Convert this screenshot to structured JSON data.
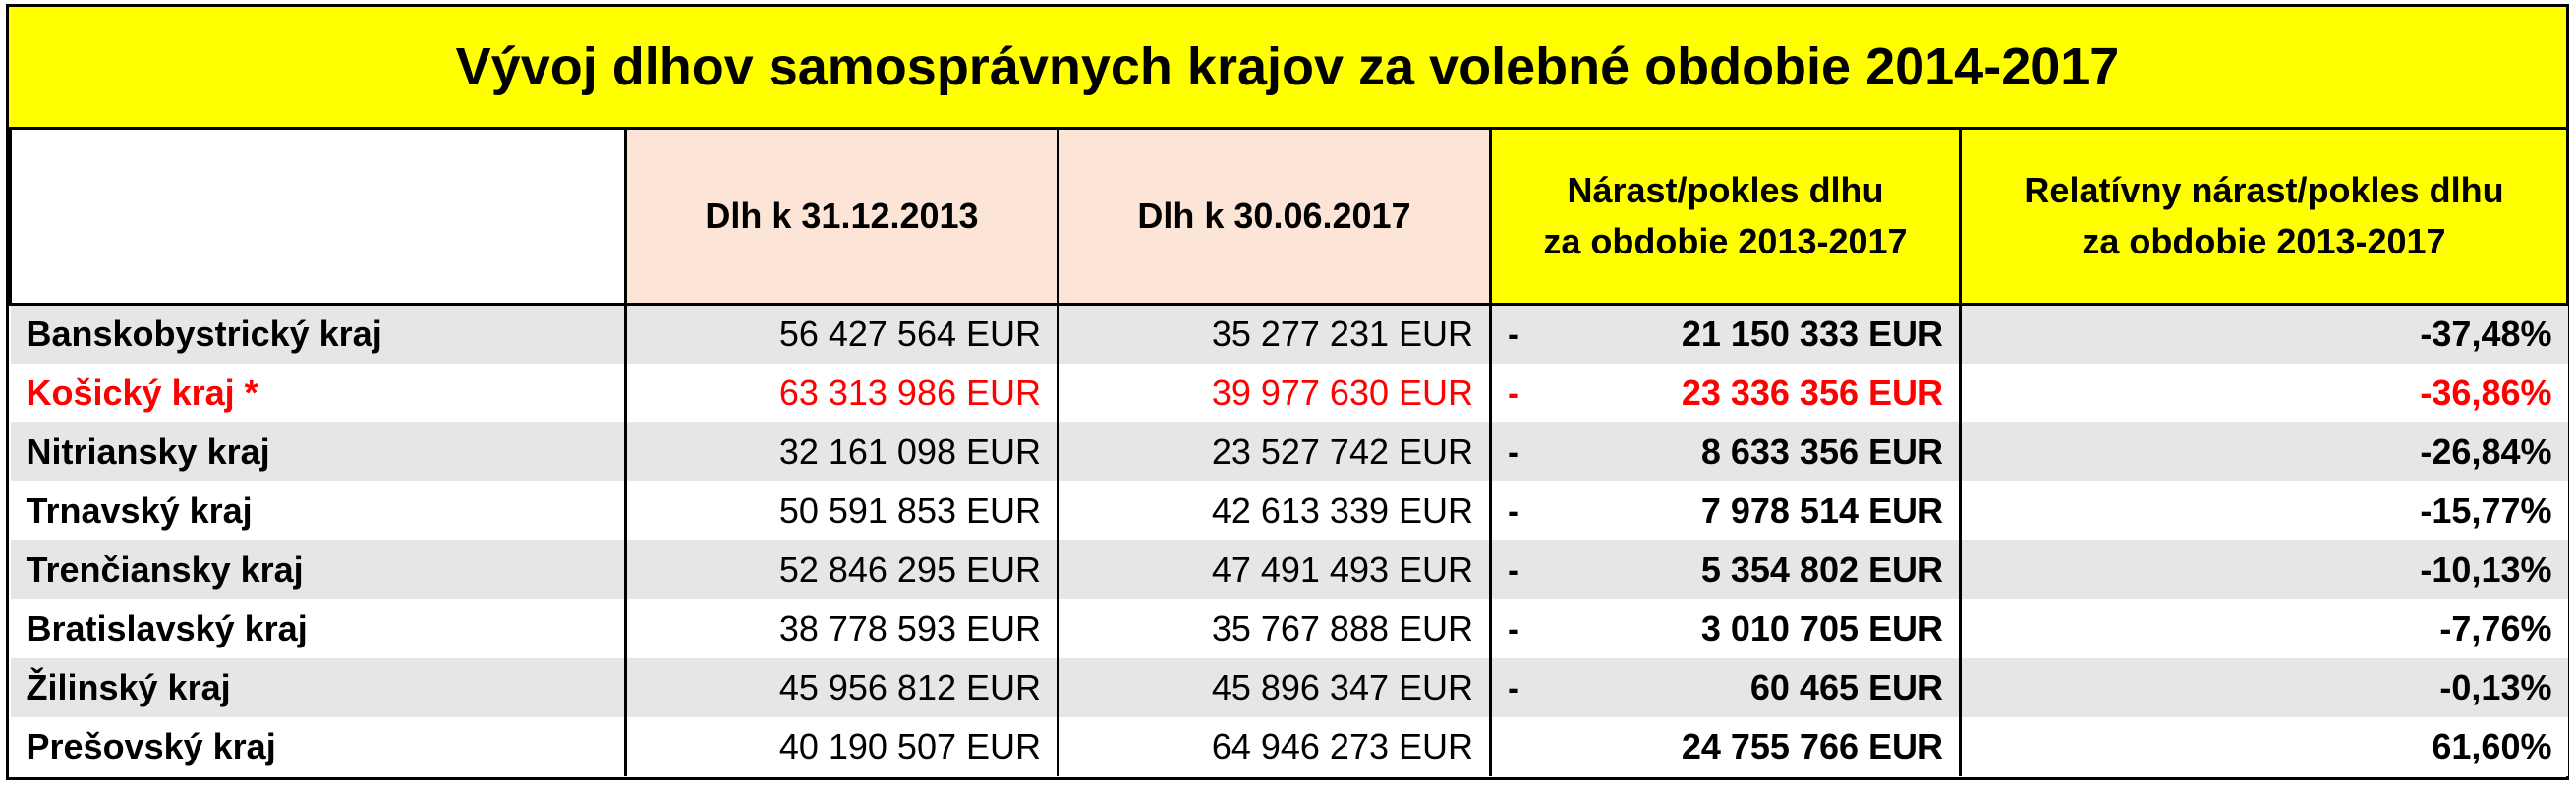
{
  "title": "Vývoj dlhov samosprávnych krajov za volebné obdobie 2014-2017",
  "headers": {
    "region": "",
    "debt_2013": "Dlh k 31.12.2013",
    "debt_2017": "Dlh k 30.06.2017",
    "change_line1": "Nárast/pokles dlhu",
    "change_line2": "za obdobie 2013-2017",
    "relative_line1": "Relatívny nárast/pokles dlhu",
    "relative_line2": "za obdobie 2013-2017"
  },
  "colors": {
    "title_background": "#ffff00",
    "header_peach": "#fce4d6",
    "row_grey": "#e7e6e6",
    "highlight_red": "#ff0000"
  },
  "rows": [
    {
      "region": "Banskobystrický kraj",
      "debt_2013": "56 427 564 EUR",
      "debt_2017": "35 277 231 EUR",
      "sign": "-",
      "change": "21 150 333 EUR",
      "relative": "-37,48%",
      "highlight": false
    },
    {
      "region": "Košický kraj *",
      "debt_2013": "63 313 986 EUR",
      "debt_2017": "39 977 630 EUR",
      "sign": "-",
      "change": "23 336 356 EUR",
      "relative": "-36,86%",
      "highlight": true
    },
    {
      "region": "Nitriansky kraj",
      "debt_2013": "32 161 098 EUR",
      "debt_2017": "23 527 742 EUR",
      "sign": "-",
      "change": "8 633 356 EUR",
      "relative": "-26,84%",
      "highlight": false
    },
    {
      "region": "Trnavský kraj",
      "debt_2013": "50 591 853 EUR",
      "debt_2017": "42 613 339 EUR",
      "sign": "-",
      "change": "7 978 514 EUR",
      "relative": "-15,77%",
      "highlight": false
    },
    {
      "region": "Trenčiansky kraj",
      "debt_2013": "52 846 295 EUR",
      "debt_2017": "47 491 493 EUR",
      "sign": "-",
      "change": "5 354 802 EUR",
      "relative": "-10,13%",
      "highlight": false
    },
    {
      "region": "Bratislavský kraj",
      "debt_2013": "38 778 593 EUR",
      "debt_2017": "35 767 888 EUR",
      "sign": "-",
      "change": "3 010 705 EUR",
      "relative": "-7,76%",
      "highlight": false
    },
    {
      "region": "Žilinský kraj",
      "debt_2013": "45 956 812 EUR",
      "debt_2017": "45 896 347 EUR",
      "sign": "-",
      "change": "60 465 EUR",
      "relative": "-0,13%",
      "highlight": false
    },
    {
      "region": "Prešovský kraj",
      "debt_2013": "40 190 507 EUR",
      "debt_2017": "64 946 273 EUR",
      "sign": "",
      "change": "24 755 766 EUR",
      "relative": "61,60%",
      "highlight": false
    }
  ]
}
